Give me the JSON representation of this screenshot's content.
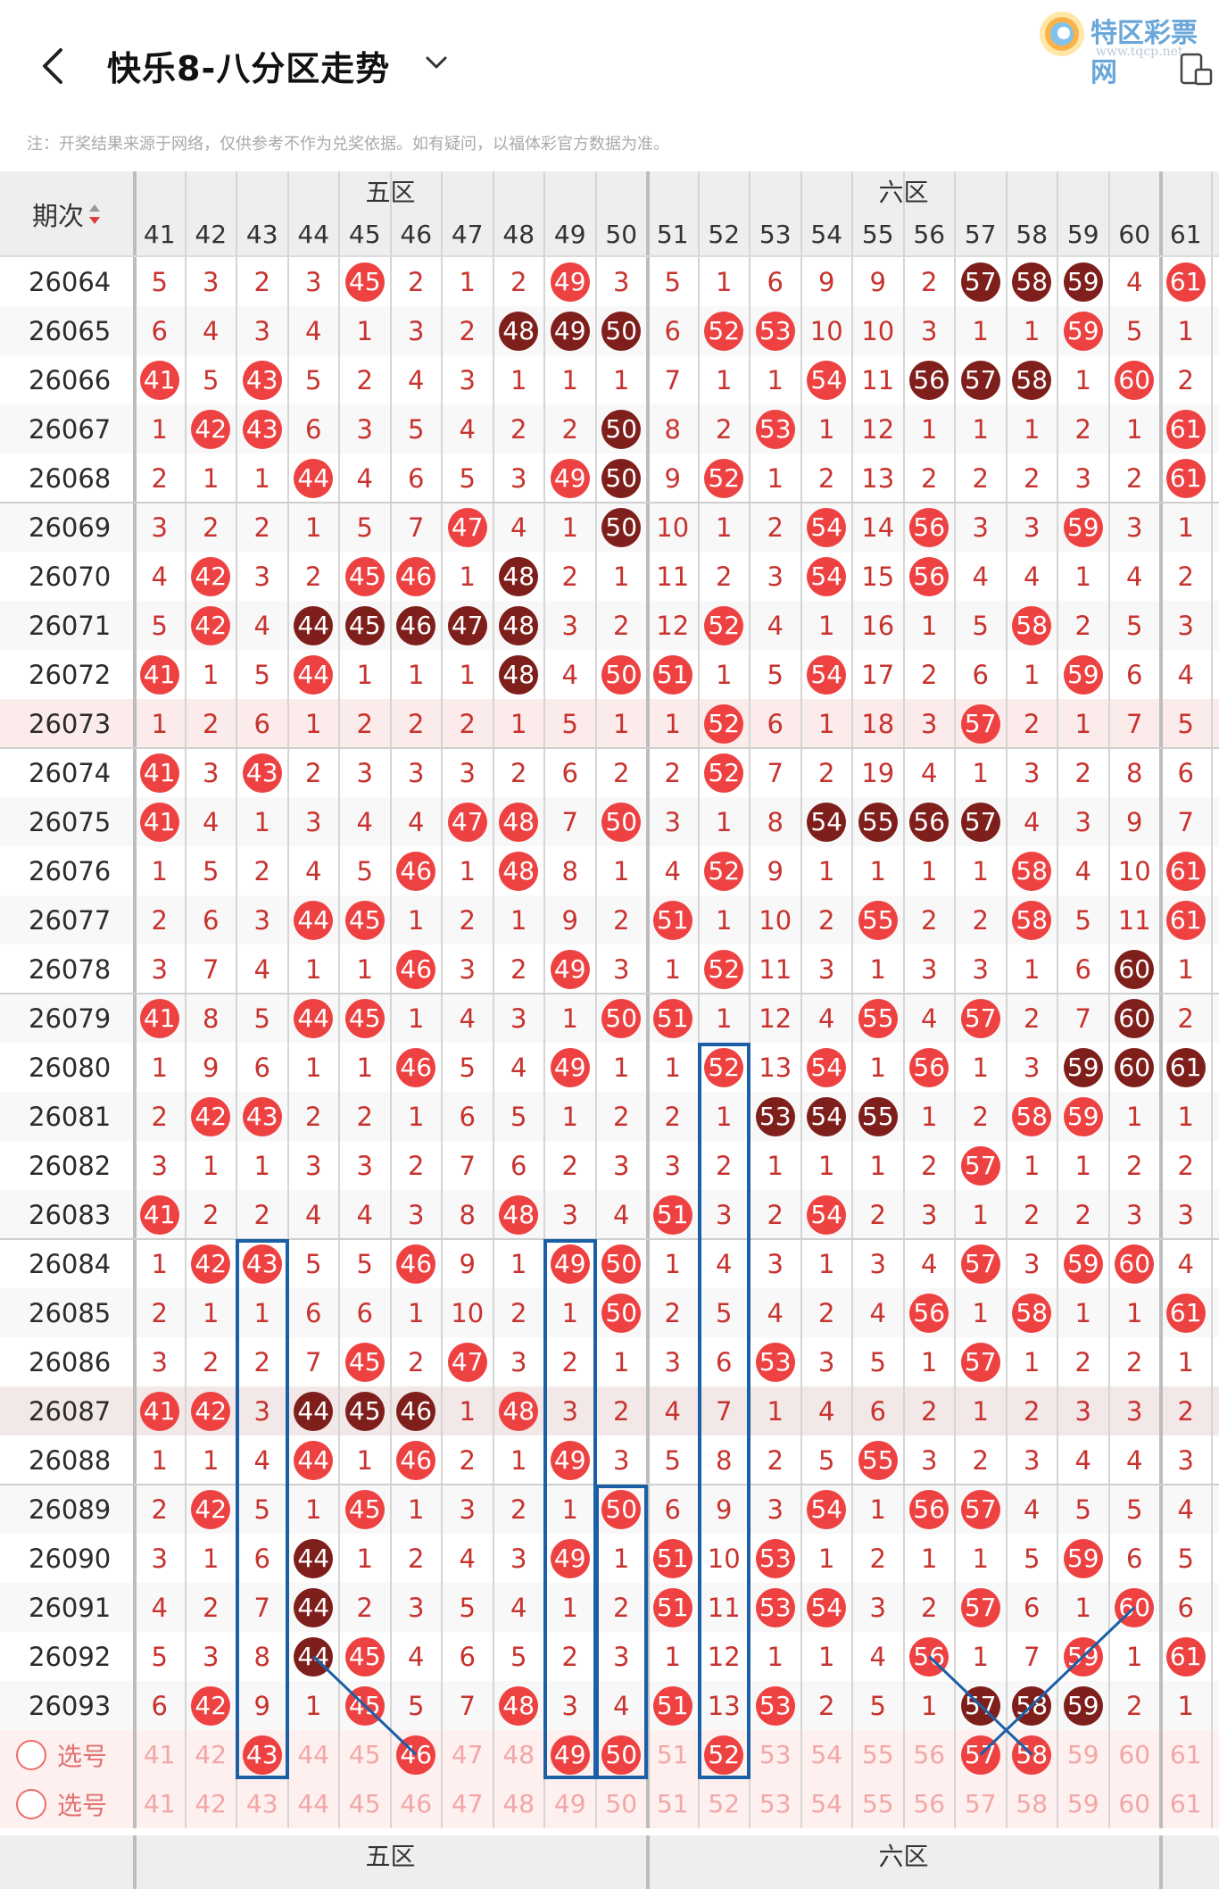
{
  "header": {
    "title": "快乐8-八分区走势",
    "logo_text": "特区彩票网",
    "logo_url": "www.tqcp.net"
  },
  "notice": "注：开奖结果来源于网络，仅供参考不作为兑奖依据。如有疑问，以福体彩官方数据为准。",
  "table": {
    "period_header": "期次",
    "zones": [
      {
        "name": "五区"
      },
      {
        "name": "六区"
      }
    ],
    "columns": [
      "41",
      "42",
      "43",
      "44",
      "45",
      "46",
      "47",
      "48",
      "49",
      "50",
      "51",
      "52",
      "53",
      "54",
      "55",
      "56",
      "57",
      "58",
      "59",
      "60",
      "61"
    ],
    "rows": [
      {
        "period": "26064",
        "cells": [
          "5",
          "3",
          "2",
          "3",
          "*45",
          "2",
          "1",
          "2",
          "*49",
          "3",
          "5",
          "1",
          "6",
          "9",
          "9",
          "2",
          "**57",
          "**58",
          "**59",
          "4",
          "*61"
        ]
      },
      {
        "period": "26065",
        "cells": [
          "6",
          "4",
          "3",
          "4",
          "1",
          "3",
          "2",
          "**48",
          "**49",
          "**50",
          "6",
          "*52",
          "*53",
          "10",
          "10",
          "3",
          "1",
          "1",
          "*59",
          "5",
          "1"
        ]
      },
      {
        "period": "26066",
        "cells": [
          "*41",
          "5",
          "*43",
          "5",
          "2",
          "4",
          "3",
          "1",
          "1",
          "1",
          "7",
          "1",
          "1",
          "*54",
          "11",
          "**56",
          "**57",
          "**58",
          "1",
          "*60",
          "2"
        ]
      },
      {
        "period": "26067",
        "cells": [
          "1",
          "*42",
          "*43",
          "6",
          "3",
          "5",
          "4",
          "2",
          "2",
          "**50",
          "8",
          "2",
          "*53",
          "1",
          "12",
          "1",
          "1",
          "1",
          "2",
          "1",
          "*61"
        ]
      },
      {
        "period": "26068",
        "cells": [
          "2",
          "1",
          "1",
          "*44",
          "4",
          "6",
          "5",
          "3",
          "*49",
          "**50",
          "9",
          "*52",
          "1",
          "2",
          "13",
          "2",
          "2",
          "2",
          "3",
          "2",
          "*61"
        ]
      },
      {
        "period": "26069",
        "cells": [
          "3",
          "2",
          "2",
          "1",
          "5",
          "7",
          "*47",
          "4",
          "1",
          "**50",
          "10",
          "1",
          "2",
          "*54",
          "14",
          "*56",
          "3",
          "3",
          "*59",
          "3",
          "1"
        ]
      },
      {
        "period": "26070",
        "cells": [
          "4",
          "*42",
          "3",
          "2",
          "*45",
          "*46",
          "1",
          "**48",
          "2",
          "1",
          "11",
          "2",
          "3",
          "*54",
          "15",
          "*56",
          "4",
          "4",
          "1",
          "4",
          "2"
        ]
      },
      {
        "period": "26071",
        "cells": [
          "5",
          "*42",
          "4",
          "**44",
          "**45",
          "**46",
          "**47",
          "**48",
          "3",
          "2",
          "12",
          "*52",
          "4",
          "1",
          "16",
          "1",
          "5",
          "*58",
          "2",
          "5",
          "3"
        ]
      },
      {
        "period": "26072",
        "cells": [
          "*41",
          "1",
          "5",
          "*44",
          "1",
          "1",
          "1",
          "**48",
          "4",
          "*50",
          "*51",
          "1",
          "5",
          "*54",
          "17",
          "2",
          "6",
          "1",
          "*59",
          "6",
          "4"
        ]
      },
      {
        "period": "26073",
        "cells": [
          "1",
          "2",
          "6",
          "1",
          "2",
          "2",
          "2",
          "1",
          "5",
          "1",
          "1",
          "*52",
          "6",
          "1",
          "18",
          "3",
          "*57",
          "2",
          "1",
          "7",
          "5"
        ]
      },
      {
        "period": "26074",
        "cells": [
          "*41",
          "3",
          "*43",
          "2",
          "3",
          "3",
          "3",
          "2",
          "6",
          "2",
          "2",
          "*52",
          "7",
          "2",
          "19",
          "4",
          "1",
          "3",
          "2",
          "8",
          "6"
        ]
      },
      {
        "period": "26075",
        "cells": [
          "*41",
          "4",
          "1",
          "3",
          "4",
          "4",
          "*47",
          "*48",
          "7",
          "*50",
          "3",
          "1",
          "8",
          "**54",
          "**55",
          "**56",
          "**57",
          "4",
          "3",
          "9",
          "7"
        ]
      },
      {
        "period": "26076",
        "cells": [
          "1",
          "5",
          "2",
          "4",
          "5",
          "*46",
          "1",
          "*48",
          "8",
          "1",
          "4",
          "*52",
          "9",
          "1",
          "1",
          "1",
          "1",
          "*58",
          "4",
          "10",
          "*61"
        ]
      },
      {
        "period": "26077",
        "cells": [
          "2",
          "6",
          "3",
          "*44",
          "*45",
          "1",
          "2",
          "1",
          "9",
          "2",
          "*51",
          "1",
          "10",
          "2",
          "*55",
          "2",
          "2",
          "*58",
          "5",
          "11",
          "*61"
        ]
      },
      {
        "period": "26078",
        "cells": [
          "3",
          "7",
          "4",
          "1",
          "1",
          "*46",
          "3",
          "2",
          "*49",
          "3",
          "1",
          "*52",
          "11",
          "3",
          "1",
          "3",
          "3",
          "1",
          "6",
          "**60",
          "1"
        ]
      },
      {
        "period": "26079",
        "cells": [
          "*41",
          "8",
          "5",
          "*44",
          "*45",
          "1",
          "4",
          "3",
          "1",
          "*50",
          "*51",
          "1",
          "12",
          "4",
          "*55",
          "4",
          "*57",
          "2",
          "7",
          "**60",
          "2"
        ]
      },
      {
        "period": "26080",
        "cells": [
          "1",
          "9",
          "6",
          "1",
          "1",
          "*46",
          "5",
          "4",
          "*49",
          "1",
          "1",
          "*52",
          "13",
          "*54",
          "1",
          "*56",
          "1",
          "3",
          "**59",
          "**60",
          "**61"
        ]
      },
      {
        "period": "26081",
        "cells": [
          "2",
          "*42",
          "*43",
          "2",
          "2",
          "1",
          "6",
          "5",
          "1",
          "2",
          "2",
          "1",
          "**53",
          "**54",
          "**55",
          "1",
          "2",
          "*58",
          "*59",
          "1",
          "1"
        ]
      },
      {
        "period": "26082",
        "cells": [
          "3",
          "1",
          "1",
          "3",
          "3",
          "2",
          "7",
          "6",
          "2",
          "3",
          "3",
          "2",
          "1",
          "1",
          "1",
          "2",
          "*57",
          "1",
          "1",
          "2",
          "2"
        ]
      },
      {
        "period": "26083",
        "cells": [
          "*41",
          "2",
          "2",
          "4",
          "4",
          "3",
          "8",
          "*48",
          "3",
          "4",
          "*51",
          "3",
          "2",
          "*54",
          "2",
          "3",
          "1",
          "2",
          "2",
          "3",
          "3"
        ]
      },
      {
        "period": "26084",
        "cells": [
          "1",
          "*42",
          "*43",
          "5",
          "5",
          "*46",
          "9",
          "1",
          "*49",
          "*50",
          "1",
          "4",
          "3",
          "1",
          "3",
          "4",
          "*57",
          "3",
          "*59",
          "*60",
          "4"
        ]
      },
      {
        "period": "26085",
        "cells": [
          "2",
          "1",
          "1",
          "6",
          "6",
          "1",
          "10",
          "2",
          "1",
          "*50",
          "2",
          "5",
          "4",
          "2",
          "4",
          "*56",
          "1",
          "*58",
          "1",
          "1",
          "*61"
        ]
      },
      {
        "period": "26086",
        "cells": [
          "3",
          "2",
          "2",
          "7",
          "*45",
          "2",
          "*47",
          "3",
          "2",
          "1",
          "3",
          "6",
          "*53",
          "3",
          "5",
          "1",
          "*57",
          "1",
          "2",
          "2",
          "1"
        ]
      },
      {
        "period": "26087",
        "cells": [
          "*41",
          "*42",
          "3",
          "**44",
          "**45",
          "**46",
          "1",
          "*48",
          "3",
          "2",
          "4",
          "7",
          "1",
          "4",
          "6",
          "2",
          "1",
          "2",
          "3",
          "3",
          "2"
        ]
      },
      {
        "period": "26088",
        "cells": [
          "1",
          "1",
          "4",
          "*44",
          "1",
          "*46",
          "2",
          "1",
          "*49",
          "3",
          "5",
          "8",
          "2",
          "5",
          "*55",
          "3",
          "2",
          "3",
          "4",
          "4",
          "3"
        ]
      },
      {
        "period": "26089",
        "cells": [
          "2",
          "*42",
          "5",
          "1",
          "*45",
          "1",
          "3",
          "2",
          "1",
          "*50",
          "6",
          "9",
          "3",
          "*54",
          "1",
          "*56",
          "*57",
          "4",
          "5",
          "5",
          "4"
        ]
      },
      {
        "period": "26090",
        "cells": [
          "3",
          "1",
          "6",
          "**44",
          "1",
          "2",
          "4",
          "3",
          "*49",
          "1",
          "*51",
          "10",
          "*53",
          "1",
          "2",
          "1",
          "1",
          "5",
          "*59",
          "6",
          "5"
        ]
      },
      {
        "period": "26091",
        "cells": [
          "4",
          "2",
          "7",
          "**44",
          "2",
          "3",
          "5",
          "4",
          "1",
          "2",
          "*51",
          "11",
          "*53",
          "*54",
          "3",
          "2",
          "*57",
          "6",
          "1",
          "*60",
          "6"
        ]
      },
      {
        "period": "26092",
        "cells": [
          "5",
          "3",
          "8",
          "**44",
          "*45",
          "4",
          "6",
          "5",
          "2",
          "3",
          "1",
          "12",
          "1",
          "1",
          "4",
          "*56",
          "1",
          "7",
          "*59",
          "1",
          "*61"
        ]
      },
      {
        "period": "26093",
        "cells": [
          "6",
          "*42",
          "9",
          "1",
          "*45",
          "5",
          "7",
          "*48",
          "3",
          "4",
          "*51",
          "13",
          "*53",
          "2",
          "5",
          "1",
          "**57",
          "**58",
          "**59",
          "2",
          "1"
        ]
      }
    ],
    "select_rows": [
      {
        "label": "选号",
        "selected": [
          "43",
          "46",
          "49",
          "50",
          "52",
          "57",
          "58"
        ]
      },
      {
        "label": "选号",
        "selected": []
      }
    ],
    "footer_zones": [
      "五区",
      "六区"
    ]
  },
  "colors": {
    "ball_red": "#ee4141",
    "ball_dark": "#7e1f1c",
    "missing_text": "#c8332f",
    "highlight_box": "#1b5fa6",
    "header_bg": "#eeeeee"
  }
}
